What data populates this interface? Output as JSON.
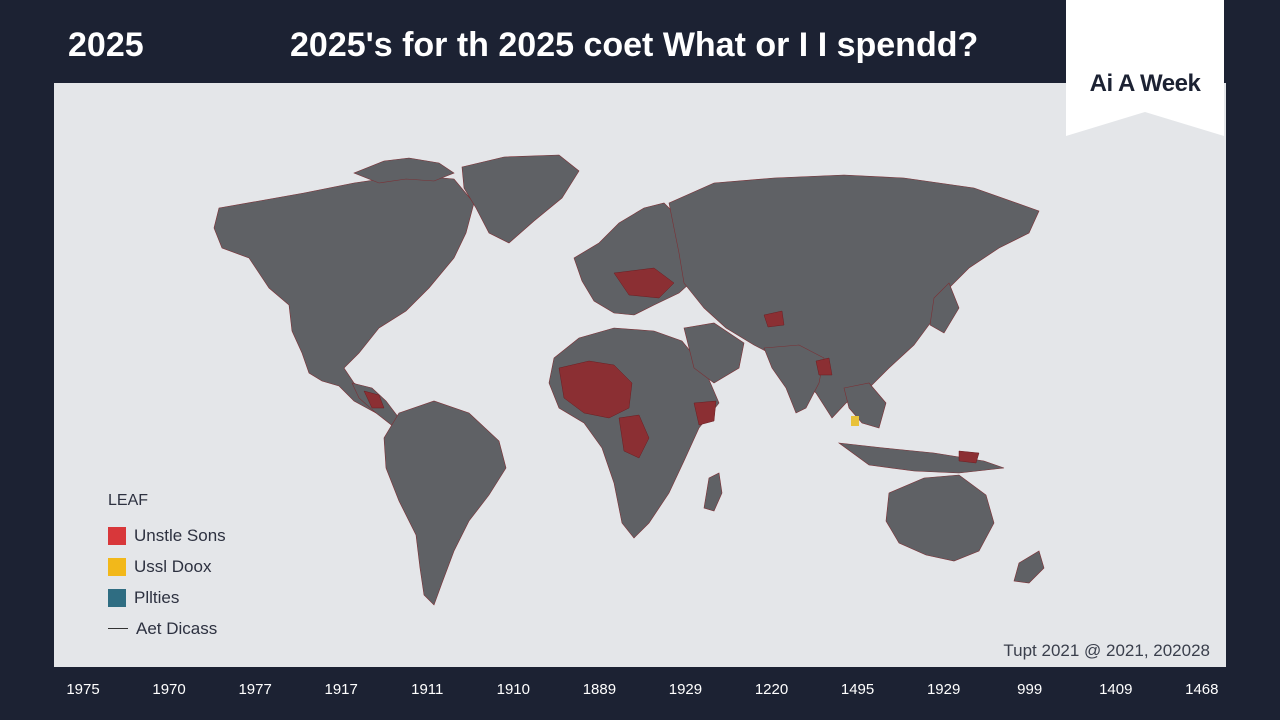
{
  "header": {
    "year": "2025",
    "headline": "2025's for th 2025 coet What or I I spendd?"
  },
  "brand": {
    "label": "Ai A Week"
  },
  "map": {
    "land_color": "#5f6165",
    "background_color": "#e4e6e9",
    "highlight_color": "#8b2f33",
    "accent_color": "#e8c13a"
  },
  "legend": {
    "title": "LEAF",
    "items": [
      {
        "label": "Unstle Sons",
        "color": "#d8373a"
      },
      {
        "label": "Ussl Doox",
        "color": "#f2b81a"
      },
      {
        "label": "Pllties",
        "color": "#2f6d82"
      },
      {
        "label": "Aet Dicass",
        "type": "line",
        "color": "#333333"
      }
    ]
  },
  "source_note": "Tupt 2021 @ 2021, 202028",
  "timeline": {
    "labels": [
      "1975",
      "1970",
      "1977",
      "1917",
      "1911",
      "1910",
      "1889",
      "1929",
      "1220",
      "1495",
      "1929",
      "999",
      "1409",
      "1468"
    ]
  }
}
